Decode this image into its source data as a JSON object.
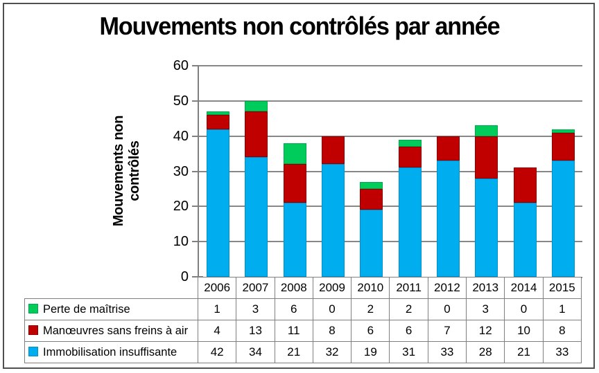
{
  "title": "Mouvements non contrôlés par année",
  "colors": {
    "frame_border": "#4f4f4f",
    "axis": "#7f7f7f",
    "grid": "#878787",
    "table_border": "#7f7f7f",
    "background": "#ffffff",
    "text": "#000000"
  },
  "chart_data": {
    "type": "bar",
    "stacked": true,
    "title": "Mouvements non contrôlés par année",
    "xlabel": "",
    "ylabel": "Mouvements non contrôlés",
    "categories": [
      "2006",
      "2007",
      "2008",
      "2009",
      "2010",
      "2011",
      "2012",
      "2013",
      "2014",
      "2015"
    ],
    "series": [
      {
        "name": "Perte de maîtrise",
        "color": "#00CC5C",
        "edge": "#00A84C",
        "values": [
          1,
          3,
          6,
          0,
          2,
          2,
          0,
          3,
          0,
          1
        ]
      },
      {
        "name": "Manœuvres sans freins à air",
        "color": "#C00000",
        "edge": "#8E0000",
        "values": [
          4,
          13,
          11,
          8,
          6,
          6,
          7,
          12,
          10,
          8
        ]
      },
      {
        "name": "Immobilisation insuffisante",
        "color": "#00AEEF",
        "edge": "#0090CC",
        "values": [
          42,
          34,
          21,
          32,
          19,
          31,
          33,
          28,
          21,
          33
        ]
      }
    ],
    "stack_order_bottom_to_top": [
      "Immobilisation insuffisante",
      "Manœuvres sans freins à air",
      "Perte de maîtrise"
    ],
    "ylim": [
      0,
      60
    ],
    "ytick_step": 10,
    "yticks": [
      0,
      10,
      20,
      30,
      40,
      50,
      60
    ],
    "grid": true,
    "legend_position": "data-table-left"
  }
}
